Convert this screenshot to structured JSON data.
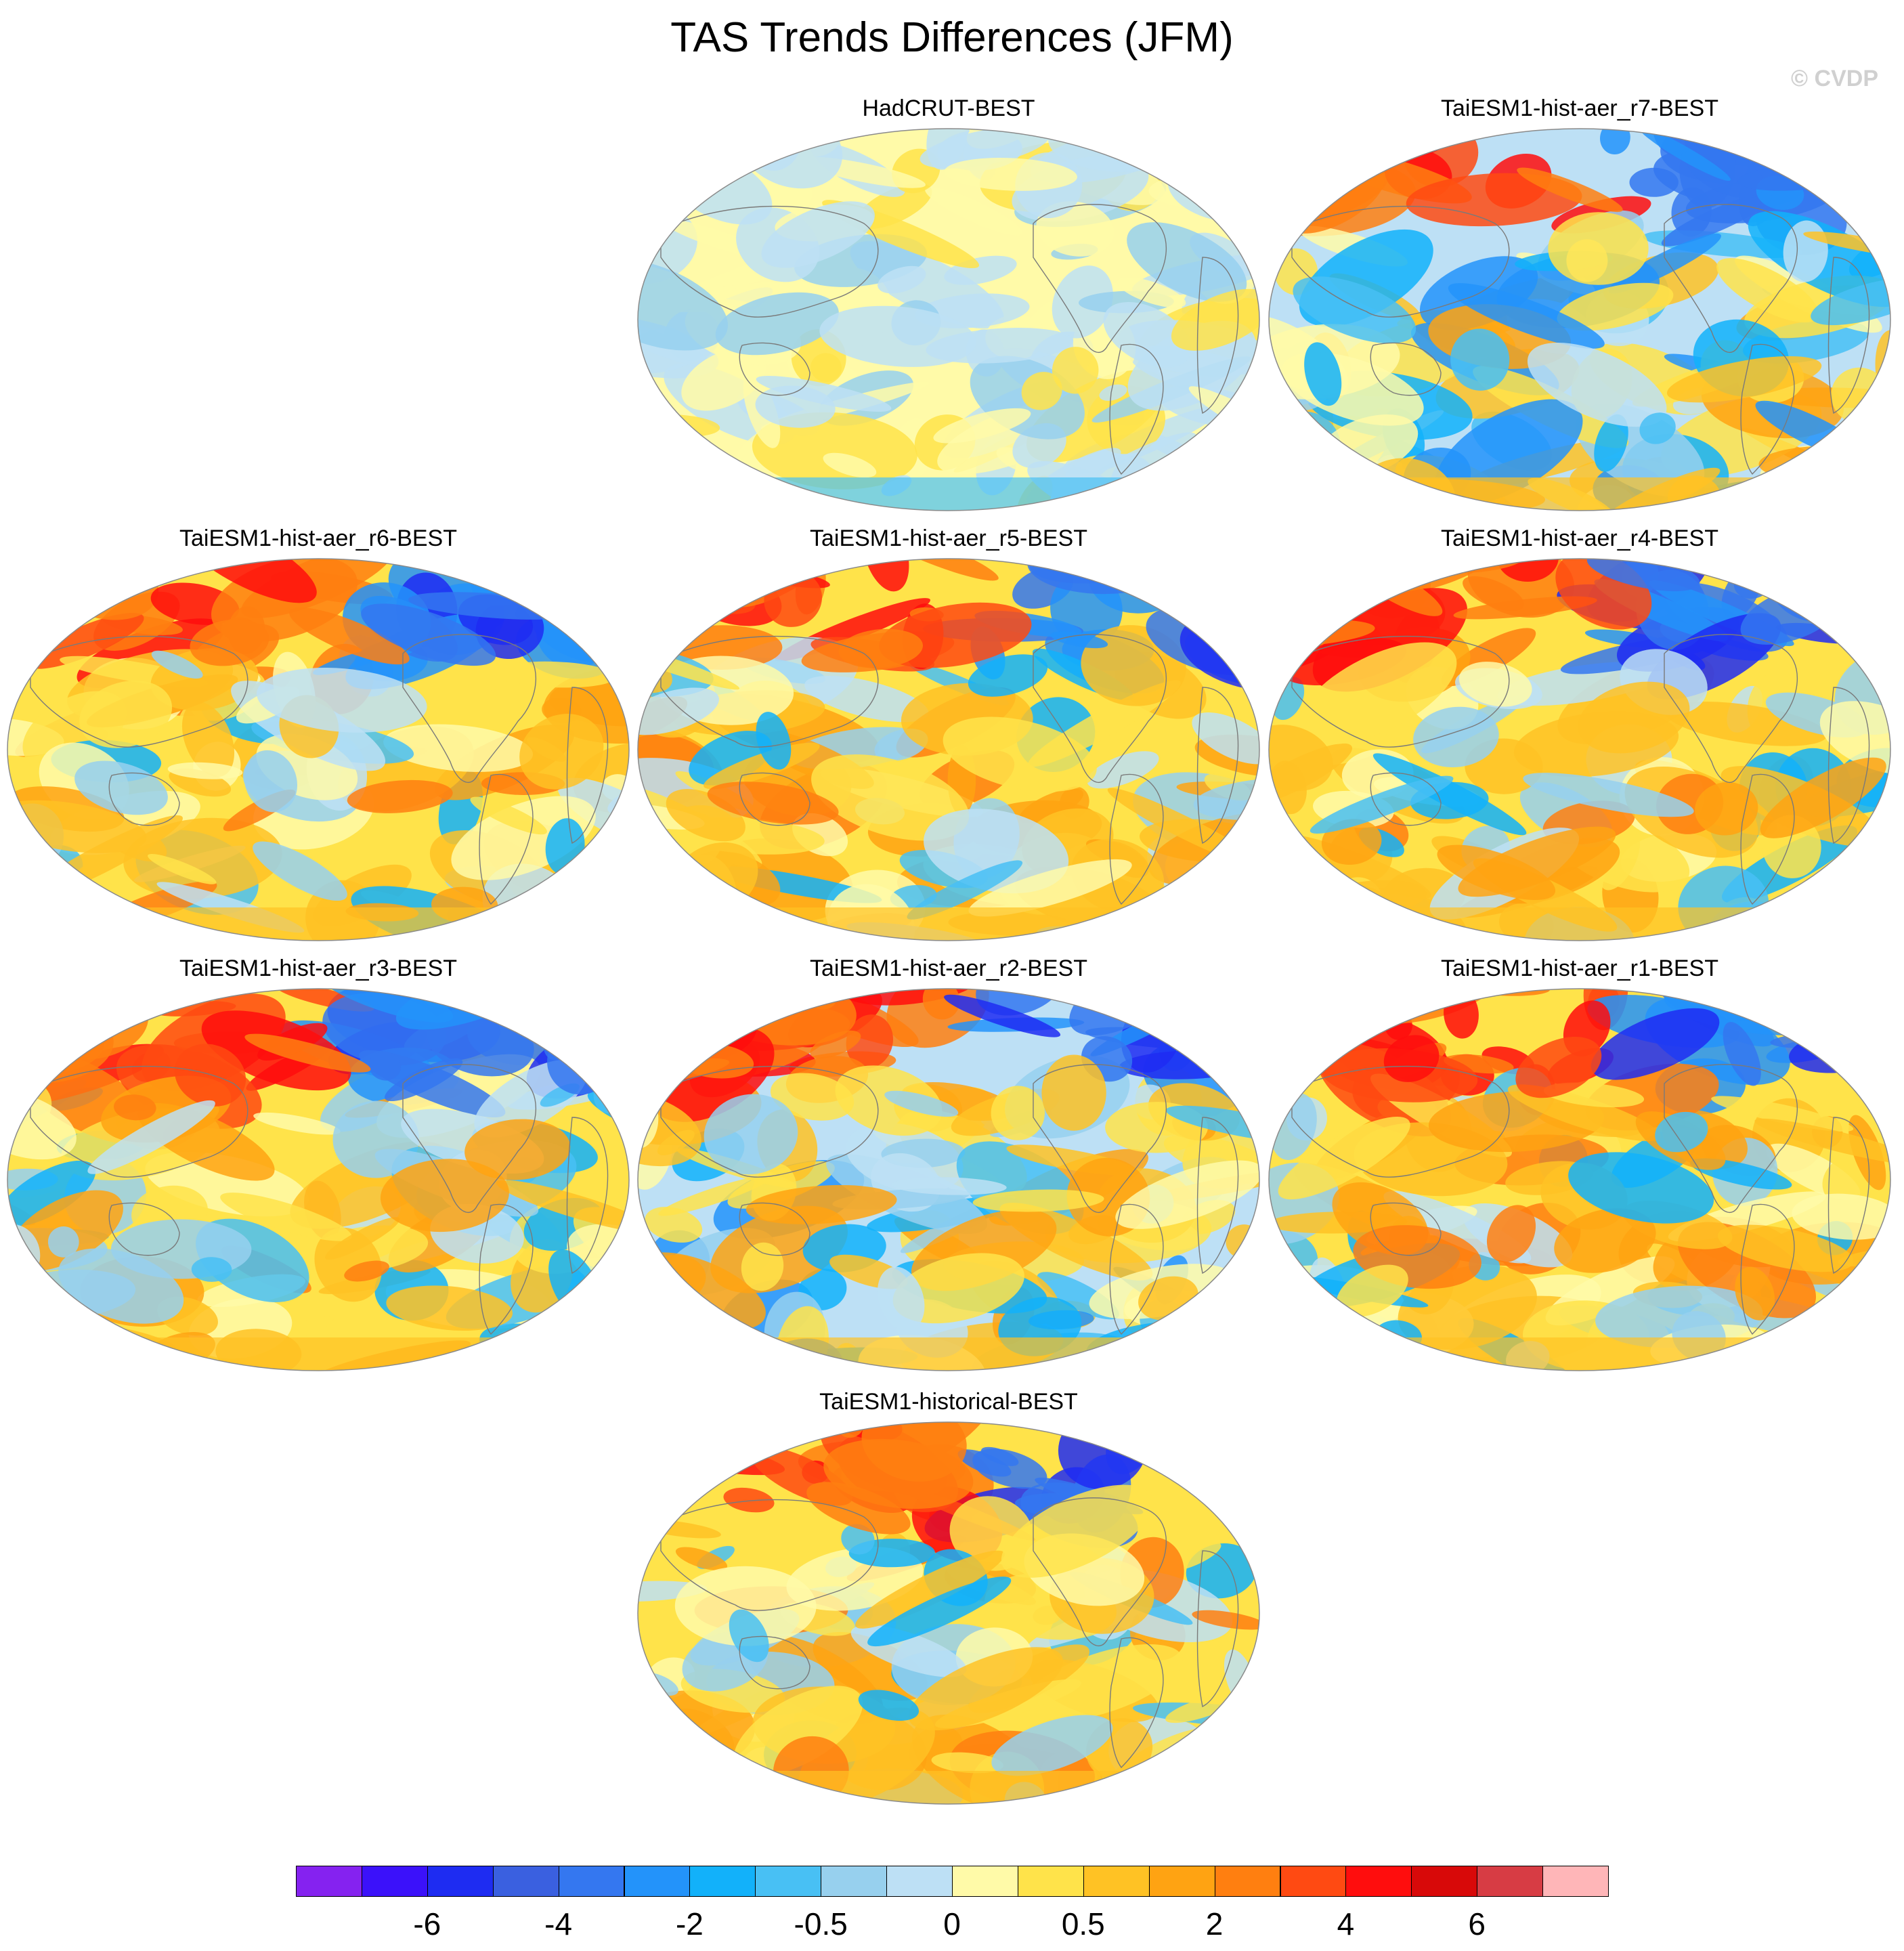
{
  "title": "TAS Trends Differences (JFM)",
  "watermark": "© CVDP",
  "panels": [
    {
      "title": "HadCRUT-BEST",
      "scheme": "weak",
      "seed": 11
    },
    {
      "title": "TaiESM1-hist-aer_r7-BEST",
      "scheme": "mixed",
      "seed": 27
    },
    {
      "title": "TaiESM1-hist-aer_r6-BEST",
      "scheme": "warm",
      "seed": 36
    },
    {
      "title": "TaiESM1-hist-aer_r5-BEST",
      "scheme": "warm",
      "seed": 45
    },
    {
      "title": "TaiESM1-hist-aer_r4-BEST",
      "scheme": "warm",
      "seed": 54
    },
    {
      "title": "TaiESM1-hist-aer_r3-BEST",
      "scheme": "warm",
      "seed": 63
    },
    {
      "title": "TaiESM1-hist-aer_r2-BEST",
      "scheme": "mixed",
      "seed": 72
    },
    {
      "title": "TaiESM1-hist-aer_r1-BEST",
      "scheme": "warm",
      "seed": 81
    },
    {
      "title": "TaiESM1-historical-BEST",
      "scheme": "warm",
      "seed": 99
    }
  ],
  "colorbar": {
    "colors": [
      "#8522f0",
      "#3b11fa",
      "#1e2cf2",
      "#3a60e0",
      "#3477f0",
      "#2393fa",
      "#12b1fa",
      "#48c0f4",
      "#97d0ee",
      "#bde0f5",
      "#fffaa8",
      "#ffe34a",
      "#ffc224",
      "#ffa312",
      "#ff7f10",
      "#ff4a12",
      "#ff0d0d",
      "#d80909",
      "#d73c44",
      "#ffb6b8"
    ],
    "labels": [
      "-6",
      "-4",
      "-2",
      "-0.5",
      "0",
      "0.5",
      "2",
      "4",
      "6"
    ],
    "label_boundaries": [
      2,
      4,
      6,
      8,
      10,
      12,
      14,
      16,
      18
    ]
  }
}
